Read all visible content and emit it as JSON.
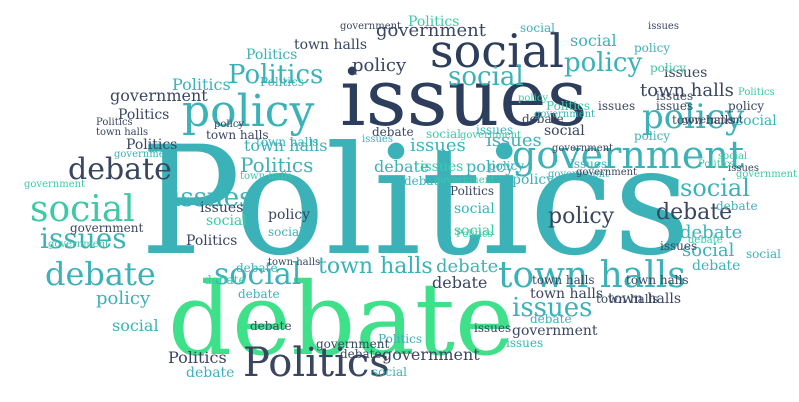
{
  "word_cloud": {
    "colors": {
      "navy": "#2c3e5c",
      "teal": "#3bb2b8",
      "sea": "#3ec9a6",
      "green": "#3fe08a",
      "slate": "#3a4660"
    },
    "words": [
      {
        "text": "Politics"
      },
      {
        "text": "debate"
      },
      {
        "text": "issues"
      },
      {
        "text": "social"
      },
      {
        "text": "government"
      },
      {
        "text": "policy"
      },
      {
        "text": "town halls"
      },
      {
        "text": "policy"
      },
      {
        "text": "Politics"
      },
      {
        "text": "town halls"
      },
      {
        "text": "Politics"
      },
      {
        "text": "issues"
      },
      {
        "text": "social"
      },
      {
        "text": "debate"
      },
      {
        "text": "social"
      },
      {
        "text": "debate"
      },
      {
        "text": "issues"
      },
      {
        "text": "social"
      },
      {
        "text": "policy"
      },
      {
        "text": "debate"
      },
      {
        "text": "policy"
      },
      {
        "text": "government"
      },
      {
        "text": "town halls"
      },
      {
        "text": "issues"
      },
      {
        "text": "town halls"
      },
      {
        "text": "social"
      },
      {
        "text": "policy"
      },
      {
        "text": "debate"
      },
      {
        "text": "social"
      },
      {
        "text": "debate"
      },
      {
        "text": "social"
      },
      {
        "text": "government"
      },
      {
        "text": "Politics"
      },
      {
        "text": "policy"
      },
      {
        "text": "social"
      },
      {
        "text": "town halls"
      },
      {
        "text": "Politics"
      },
      {
        "text": "debate"
      },
      {
        "text": "Politics"
      },
      {
        "text": "government"
      },
      {
        "text": "social"
      },
      {
        "text": "issues"
      },
      {
        "text": "social"
      },
      {
        "text": "Politics"
      },
      {
        "text": "government"
      },
      {
        "text": "town halls"
      },
      {
        "text": "Politics"
      },
      {
        "text": "policy"
      },
      {
        "text": "town halls"
      },
      {
        "text": "debate"
      },
      {
        "text": "issues"
      },
      {
        "text": "issues"
      },
      {
        "text": "debate"
      },
      {
        "text": "policy"
      },
      {
        "text": "debate"
      },
      {
        "text": "issues"
      },
      {
        "text": "policy"
      },
      {
        "text": "issues"
      },
      {
        "text": "social"
      },
      {
        "text": "policy"
      },
      {
        "text": "social"
      },
      {
        "text": "issues"
      },
      {
        "text": "town halls"
      },
      {
        "text": "town halls"
      },
      {
        "text": "social"
      },
      {
        "text": "policy"
      },
      {
        "text": "social"
      },
      {
        "text": "debate"
      },
      {
        "text": "debate"
      },
      {
        "text": "issues"
      },
      {
        "text": "town halls"
      },
      {
        "text": "Politics"
      },
      {
        "text": "debate"
      },
      {
        "text": "government"
      },
      {
        "text": "issues"
      },
      {
        "text": "debate"
      },
      {
        "text": "social"
      },
      {
        "text": "Politics"
      },
      {
        "text": "debate"
      },
      {
        "text": "town halls"
      },
      {
        "text": "government"
      },
      {
        "text": "social"
      },
      {
        "text": "policy"
      },
      {
        "text": "issues"
      },
      {
        "text": "policy"
      },
      {
        "text": "issues"
      },
      {
        "text": "debate"
      },
      {
        "text": "issues"
      },
      {
        "text": "town halls"
      },
      {
        "text": "government"
      },
      {
        "text": "debate"
      },
      {
        "text": "debate"
      },
      {
        "text": "town halls"
      },
      {
        "text": "debate"
      },
      {
        "text": "government"
      },
      {
        "text": "issues"
      },
      {
        "text": "Politics"
      },
      {
        "text": "government"
      },
      {
        "text": "government"
      },
      {
        "text": "government"
      },
      {
        "text": "Politics"
      },
      {
        "text": "policy"
      },
      {
        "text": "Politics"
      },
      {
        "text": "government"
      },
      {
        "text": "government"
      },
      {
        "text": "social"
      },
      {
        "text": "social"
      },
      {
        "text": "Politics"
      },
      {
        "text": "Politics"
      },
      {
        "text": "policy"
      },
      {
        "text": "government"
      },
      {
        "text": "Politics"
      },
      {
        "text": "issues"
      },
      {
        "text": "issues"
      },
      {
        "text": "town halls"
      },
      {
        "text": "Politics"
      },
      {
        "text": "Politics"
      },
      {
        "text": "debate"
      },
      {
        "text": "government"
      },
      {
        "text": "issues"
      },
      {
        "text": "town halls"
      },
      {
        "text": "social"
      },
      {
        "text": "policy"
      },
      {
        "text": "town halls"
      },
      {
        "text": "Politics"
      },
      {
        "text": "government"
      },
      {
        "text": "government"
      },
      {
        "text": "issues"
      },
      {
        "text": "debate"
      },
      {
        "text": "government"
      },
      {
        "text": "town halls"
      },
      {
        "text": "town halls"
      },
      {
        "text": "debate"
      },
      {
        "text": "government"
      }
    ]
  }
}
